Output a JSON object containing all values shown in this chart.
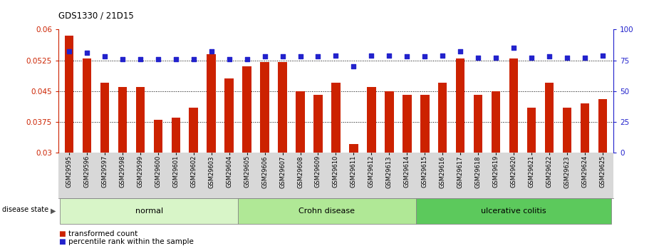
{
  "title": "GDS1330 / 21D15",
  "samples": [
    "GSM29595",
    "GSM29596",
    "GSM29597",
    "GSM29598",
    "GSM29599",
    "GSM29600",
    "GSM29601",
    "GSM29602",
    "GSM29603",
    "GSM29604",
    "GSM29605",
    "GSM29606",
    "GSM29607",
    "GSM29608",
    "GSM29609",
    "GSM29610",
    "GSM29611",
    "GSM29612",
    "GSM29613",
    "GSM29614",
    "GSM29615",
    "GSM29616",
    "GSM29617",
    "GSM29618",
    "GSM29619",
    "GSM29620",
    "GSM29621",
    "GSM29622",
    "GSM29623",
    "GSM29624",
    "GSM29625"
  ],
  "transformed_count": [
    0.0585,
    0.053,
    0.047,
    0.046,
    0.046,
    0.038,
    0.0385,
    0.041,
    0.054,
    0.048,
    0.051,
    0.052,
    0.052,
    0.045,
    0.044,
    0.047,
    0.032,
    0.046,
    0.045,
    0.044,
    0.044,
    0.047,
    0.053,
    0.044,
    0.045,
    0.053,
    0.041,
    0.047,
    0.041,
    0.042,
    0.043
  ],
  "percentile_rank": [
    82,
    81,
    78,
    76,
    76,
    76,
    76,
    76,
    82,
    76,
    76,
    78,
    78,
    78,
    78,
    79,
    70,
    79,
    79,
    78,
    78,
    79,
    82,
    77,
    77,
    85,
    77,
    78,
    77,
    77,
    79
  ],
  "groups": [
    {
      "label": "normal",
      "start": 0,
      "end": 10,
      "color": "#d8f5c8"
    },
    {
      "label": "Crohn disease",
      "start": 10,
      "end": 20,
      "color": "#b0e896"
    },
    {
      "label": "ulcerative colitis",
      "start": 20,
      "end": 31,
      "color": "#5cc95c"
    }
  ],
  "ylim_left": [
    0.03,
    0.06
  ],
  "ylim_right": [
    0,
    100
  ],
  "yticks_left": [
    0.03,
    0.0375,
    0.045,
    0.0525,
    0.06
  ],
  "ytick_labels_left": [
    "0.03",
    "0.0375",
    "0.045",
    "0.0525",
    "0.06"
  ],
  "yticks_right": [
    0,
    25,
    50,
    75,
    100
  ],
  "ytick_labels_right": [
    "0",
    "25",
    "50",
    "75",
    "100"
  ],
  "bar_color": "#cc2200",
  "dot_color": "#2222cc",
  "bar_width": 0.5,
  "background_color": "#ffffff"
}
